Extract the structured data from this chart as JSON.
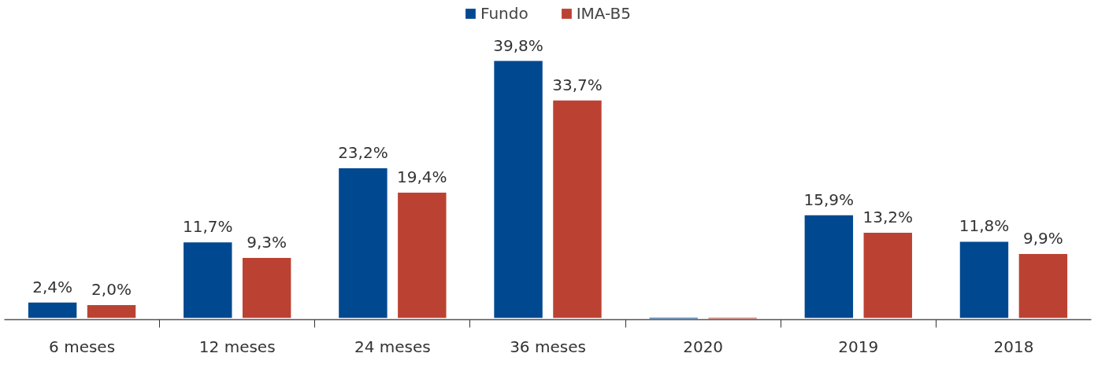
{
  "chart_data": {
    "type": "bar",
    "categories": [
      "6 meses",
      "12 meses",
      "24 meses",
      "36 meses",
      "2020",
      "2019",
      "2018"
    ],
    "series": [
      {
        "name": "Fundo",
        "color": "#004990",
        "values": [
          2.4,
          11.7,
          23.2,
          39.8,
          -0.1,
          15.9,
          11.8
        ],
        "value_labels": [
          "2,4%",
          "11,7%",
          "23,2%",
          "39,8%",
          null,
          "15,9%",
          "11,8%"
        ]
      },
      {
        "name": "IMA-B5",
        "color": "#bb4232",
        "values": [
          2.0,
          9.3,
          19.4,
          33.7,
          -0.1,
          13.2,
          9.9
        ],
        "value_labels": [
          "2,0%",
          "9,3%",
          "19,4%",
          "33,7%",
          null,
          "13,2%",
          "9,9%"
        ]
      }
    ],
    "legend": "top"
  }
}
